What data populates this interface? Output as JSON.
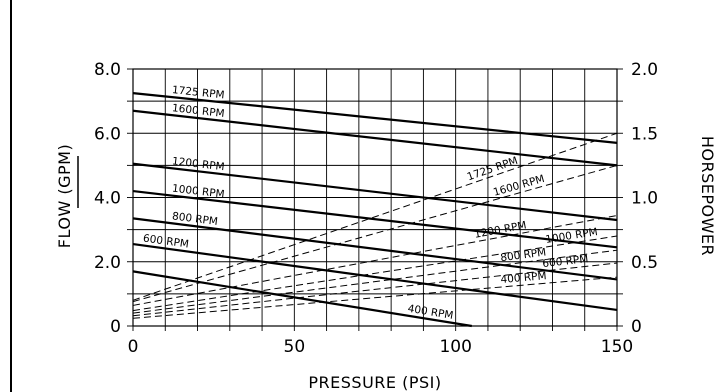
{
  "chart_data": {
    "type": "line",
    "xlabel": "PRESSURE (PSI)",
    "ylabel": "FLOW (GPM)",
    "y2label": "HORSEPOWER",
    "xlim": [
      0,
      150
    ],
    "ylim": [
      0,
      8
    ],
    "y2lim": [
      0,
      2
    ],
    "x_ticks": [
      "0",
      "50",
      "100",
      "150"
    ],
    "y_ticks": [
      "0",
      "2.0",
      "4.0",
      "6.0",
      "8.0"
    ],
    "y2_ticks": [
      "0",
      "0.5",
      "1.0",
      "1.5",
      "2.0"
    ],
    "grid": true,
    "flow_series": [
      {
        "name": "1725 RPM",
        "x": [
          0,
          150
        ],
        "y": [
          7.25,
          5.7
        ]
      },
      {
        "name": "1600 RPM",
        "x": [
          0,
          150
        ],
        "y": [
          6.7,
          5.0
        ]
      },
      {
        "name": "1200 RPM",
        "x": [
          0,
          150
        ],
        "y": [
          5.05,
          3.3
        ]
      },
      {
        "name": "1000 RPM",
        "x": [
          0,
          150
        ],
        "y": [
          4.2,
          2.45
        ]
      },
      {
        "name": "800 RPM",
        "x": [
          0,
          150
        ],
        "y": [
          3.35,
          1.45
        ]
      },
      {
        "name": "600 RPM",
        "x": [
          0,
          150
        ],
        "y": [
          2.55,
          0.5
        ]
      },
      {
        "name": "400 RPM",
        "x": [
          0,
          105
        ],
        "y": [
          1.7,
          0.0
        ]
      }
    ],
    "horsepower_series": [
      {
        "name": "1725 RPM",
        "x": [
          0,
          150
        ],
        "y": [
          0.2,
          1.5
        ]
      },
      {
        "name": "1600 RPM",
        "x": [
          0,
          150
        ],
        "y": [
          0.19,
          1.25
        ]
      },
      {
        "name": "1200 RPM",
        "x": [
          0,
          150
        ],
        "y": [
          0.16,
          0.86
        ]
      },
      {
        "name": "1000 RPM",
        "x": [
          0,
          150
        ],
        "y": [
          0.12,
          0.7
        ]
      },
      {
        "name": "800 RPM",
        "x": [
          0,
          150
        ],
        "y": [
          0.1,
          0.59
        ]
      },
      {
        "name": "600 RPM",
        "x": [
          0,
          150
        ],
        "y": [
          0.08,
          0.49
        ]
      },
      {
        "name": "400 RPM",
        "x": [
          0,
          150
        ],
        "y": [
          0.06,
          0.38
        ]
      }
    ]
  }
}
